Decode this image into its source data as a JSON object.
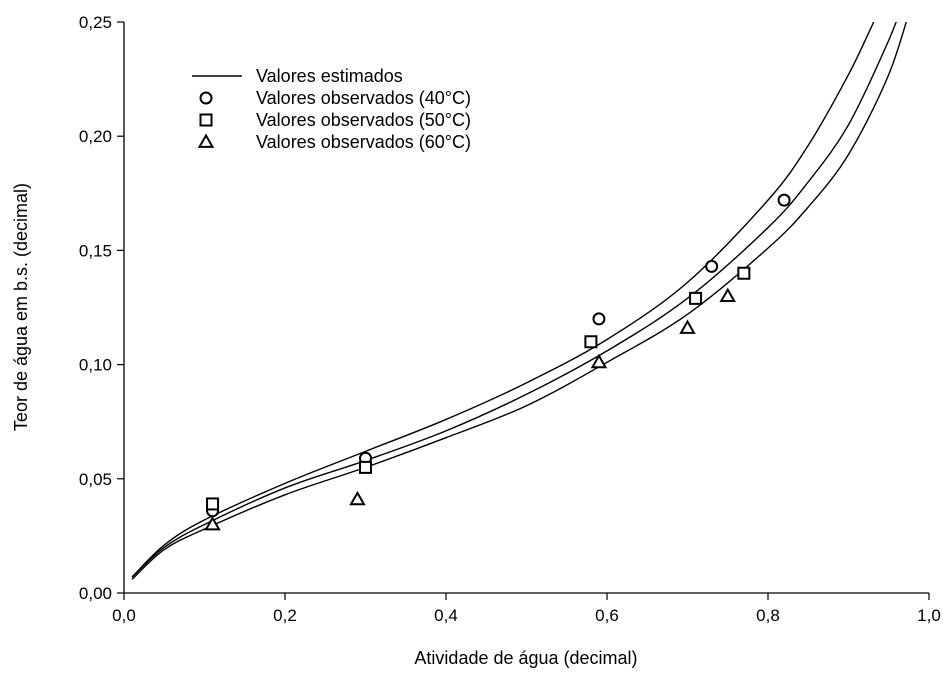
{
  "chart_data": {
    "type": "scatter",
    "xlabel": "Atividade de água (decimal)",
    "ylabel": "Teor de água em b.s. (decimal)",
    "xlim": [
      0.0,
      1.0
    ],
    "ylim": [
      0.0,
      0.25
    ],
    "x_ticks": [
      "0,0",
      "0,2",
      "0,4",
      "0,6",
      "0,8",
      "1,0"
    ],
    "y_ticks": [
      "0,00",
      "0,05",
      "0,10",
      "0,15",
      "0,20",
      "0,25"
    ],
    "grid": false,
    "legend_position": "top-left",
    "legend": [
      {
        "label": "Valores estimados",
        "marker": "line"
      },
      {
        "label": "Valores observados (40°C)",
        "marker": "circle"
      },
      {
        "label": "Valores observados (50°C)",
        "marker": "square"
      },
      {
        "label": "Valores observados (60°C)",
        "marker": "triangle"
      }
    ],
    "series": [
      {
        "name": "Valores observados (40°C)",
        "marker": "circle",
        "x": [
          0.11,
          0.3,
          0.59,
          0.73,
          0.82
        ],
        "y": [
          0.036,
          0.059,
          0.12,
          0.143,
          0.172
        ]
      },
      {
        "name": "Valores observados (50°C)",
        "marker": "square",
        "x": [
          0.11,
          0.3,
          0.58,
          0.71,
          0.77
        ],
        "y": [
          0.039,
          0.055,
          0.11,
          0.129,
          0.14
        ]
      },
      {
        "name": "Valores observados (60°C)",
        "marker": "triangle",
        "x": [
          0.11,
          0.29,
          0.59,
          0.7,
          0.75
        ],
        "y": [
          0.03,
          0.041,
          0.101,
          0.116,
          0.13
        ]
      }
    ],
    "estimated_curves": [
      {
        "label": "Valores estimados",
        "temperature": "40°C",
        "x": [
          0.01,
          0.05,
          0.1,
          0.2,
          0.3,
          0.4,
          0.5,
          0.6,
          0.7,
          0.8,
          0.85,
          0.9,
          0.93,
          0.95,
          0.96
        ],
        "y": [
          0.007,
          0.021,
          0.032,
          0.048,
          0.062,
          0.076,
          0.092,
          0.111,
          0.136,
          0.172,
          0.196,
          0.227,
          0.249,
          0.264,
          0.271
        ]
      },
      {
        "label": "Valores estimados",
        "temperature": "50°C",
        "x": [
          0.01,
          0.05,
          0.1,
          0.2,
          0.3,
          0.4,
          0.5,
          0.6,
          0.7,
          0.8,
          0.85,
          0.9,
          0.95,
          0.97
        ],
        "y": [
          0.007,
          0.02,
          0.03,
          0.046,
          0.058,
          0.071,
          0.087,
          0.106,
          0.129,
          0.16,
          0.18,
          0.205,
          0.242,
          0.261
        ]
      },
      {
        "label": "Valores estimados",
        "temperature": "60°C",
        "x": [
          0.01,
          0.05,
          0.1,
          0.2,
          0.3,
          0.4,
          0.5,
          0.6,
          0.7,
          0.8,
          0.85,
          0.9,
          0.95,
          0.98
        ],
        "y": [
          0.006,
          0.019,
          0.028,
          0.043,
          0.055,
          0.068,
          0.082,
          0.101,
          0.122,
          0.151,
          0.169,
          0.192,
          0.227,
          0.26
        ]
      }
    ],
    "colors": {
      "line": "#000000",
      "marker_stroke": "#000000",
      "marker_fill": "#ffffff",
      "background": "#ffffff"
    }
  }
}
